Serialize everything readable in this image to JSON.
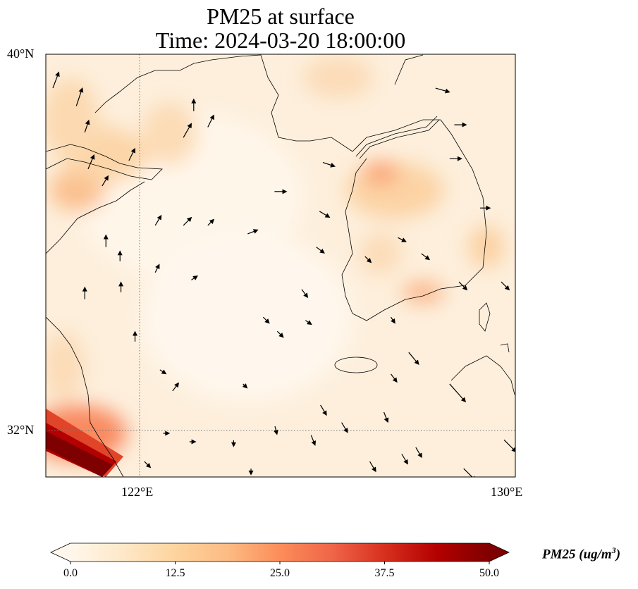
{
  "title": {
    "line1": "PM25 at surface",
    "line2": "Time: 2024-03-20 18:00:00"
  },
  "axes": {
    "lat_ticks": [
      {
        "value": 40,
        "label": "40°N"
      },
      {
        "value": 32,
        "label": "32°N"
      }
    ],
    "lon_ticks": [
      {
        "value": 122,
        "label": "122°E"
      },
      {
        "value": 130,
        "label": "130°E"
      }
    ],
    "lon_range": [
      120,
      130
    ],
    "lat_range": [
      31,
      40
    ]
  },
  "colorbar": {
    "label": "PM25 (ug/m",
    "label_sup": "3",
    "label_close": ")",
    "ticks": [
      "0.0",
      "12.5",
      "25.0",
      "37.5",
      "50.0"
    ],
    "range": [
      0,
      50
    ],
    "colormap": [
      "#fff7ec",
      "#fee8c8",
      "#fdd49e",
      "#fdbb84",
      "#fc8d59",
      "#ef6548",
      "#d7301f",
      "#b30000",
      "#7f0000"
    ],
    "extend": "both"
  },
  "wind_vectors": [
    [
      120.15,
      39.28,
      0.3,
      0.8
    ],
    [
      120.65,
      38.9,
      0.3,
      0.9
    ],
    [
      120.83,
      38.34,
      0.2,
      0.6
    ],
    [
      120.9,
      37.56,
      0.3,
      0.7
    ],
    [
      121.2,
      37.2,
      0.3,
      0.5
    ],
    [
      121.77,
      37.74,
      0.3,
      0.6
    ],
    [
      122.93,
      38.23,
      0.4,
      0.7
    ],
    [
      123.45,
      38.45,
      0.3,
      0.6
    ],
    [
      123.15,
      38.79,
      0,
      0.6
    ],
    [
      122.33,
      36.36,
      0.3,
      0.5
    ],
    [
      122.93,
      36.36,
      0.4,
      0.4
    ],
    [
      123.45,
      36.36,
      0.3,
      0.3
    ],
    [
      121.28,
      35.9,
      0,
      0.6
    ],
    [
      121.58,
      35.6,
      0,
      0.5
    ],
    [
      120.83,
      34.79,
      0,
      0.6
    ],
    [
      121.6,
      34.94,
      0,
      0.5
    ],
    [
      122.33,
      35.36,
      0.2,
      0.4
    ],
    [
      123.1,
      35.2,
      0.3,
      0.2
    ],
    [
      124.3,
      36.18,
      0.5,
      0.2
    ],
    [
      124.87,
      37.08,
      0.6,
      0
    ],
    [
      125.9,
      37.7,
      0.6,
      -0.2
    ],
    [
      125.83,
      36.66,
      0.5,
      -0.3
    ],
    [
      125.76,
      35.9,
      0.4,
      -0.3
    ],
    [
      125.45,
      35.0,
      0.3,
      -0.4
    ],
    [
      124.63,
      34.41,
      0.3,
      -0.3
    ],
    [
      124.93,
      34.11,
      0.3,
      -0.3
    ],
    [
      125.53,
      34.34,
      0.3,
      -0.2
    ],
    [
      121.9,
      33.89,
      0,
      0.5
    ],
    [
      122.43,
      33.29,
      0.3,
      -0.2
    ],
    [
      122.7,
      32.84,
      0.3,
      0.4
    ],
    [
      124.2,
      32.99,
      0.2,
      -0.2
    ],
    [
      125.85,
      32.54,
      0.3,
      -0.5
    ],
    [
      126.3,
      32.17,
      0.3,
      -0.5
    ],
    [
      127.2,
      32.39,
      0.2,
      -0.5
    ],
    [
      127.35,
      33.2,
      0.3,
      -0.4
    ],
    [
      127.73,
      33.66,
      0.5,
      -0.6
    ],
    [
      128.6,
      32.99,
      0.8,
      -0.9
    ],
    [
      127.88,
      31.64,
      0.3,
      -0.5
    ],
    [
      127.58,
      31.5,
      0.3,
      -0.5
    ],
    [
      126.9,
      31.34,
      0.3,
      -0.5
    ],
    [
      128.9,
      31.19,
      0.6,
      -0.6
    ],
    [
      129.76,
      31.8,
      0.6,
      -0.6
    ],
    [
      129.25,
      36.73,
      0.5,
      0
    ],
    [
      128.7,
      38.5,
      0.6,
      0
    ],
    [
      128.3,
      39.28,
      0.7,
      -0.2
    ],
    [
      128.6,
      37.78,
      0.6,
      0
    ],
    [
      128.8,
      35.16,
      0.4,
      -0.4
    ],
    [
      129.7,
      35.16,
      0.4,
      -0.4
    ],
    [
      127.35,
      34.41,
      0.2,
      -0.3
    ],
    [
      128.0,
      35.76,
      0.4,
      -0.3
    ],
    [
      126.8,
      35.7,
      0.3,
      -0.3
    ],
    [
      127.5,
      36.1,
      0.4,
      -0.2
    ],
    [
      122.5,
      31.94,
      0.3,
      0
    ],
    [
      123.06,
      31.76,
      0.3,
      0
    ],
    [
      124.0,
      31.79,
      0,
      -0.3
    ],
    [
      125.65,
      31.9,
      0.2,
      -0.5
    ],
    [
      124.88,
      32.09,
      0.1,
      -0.4
    ],
    [
      122.1,
      31.34,
      0.3,
      -0.3
    ],
    [
      124.37,
      31.19,
      0,
      -0.3
    ]
  ]
}
